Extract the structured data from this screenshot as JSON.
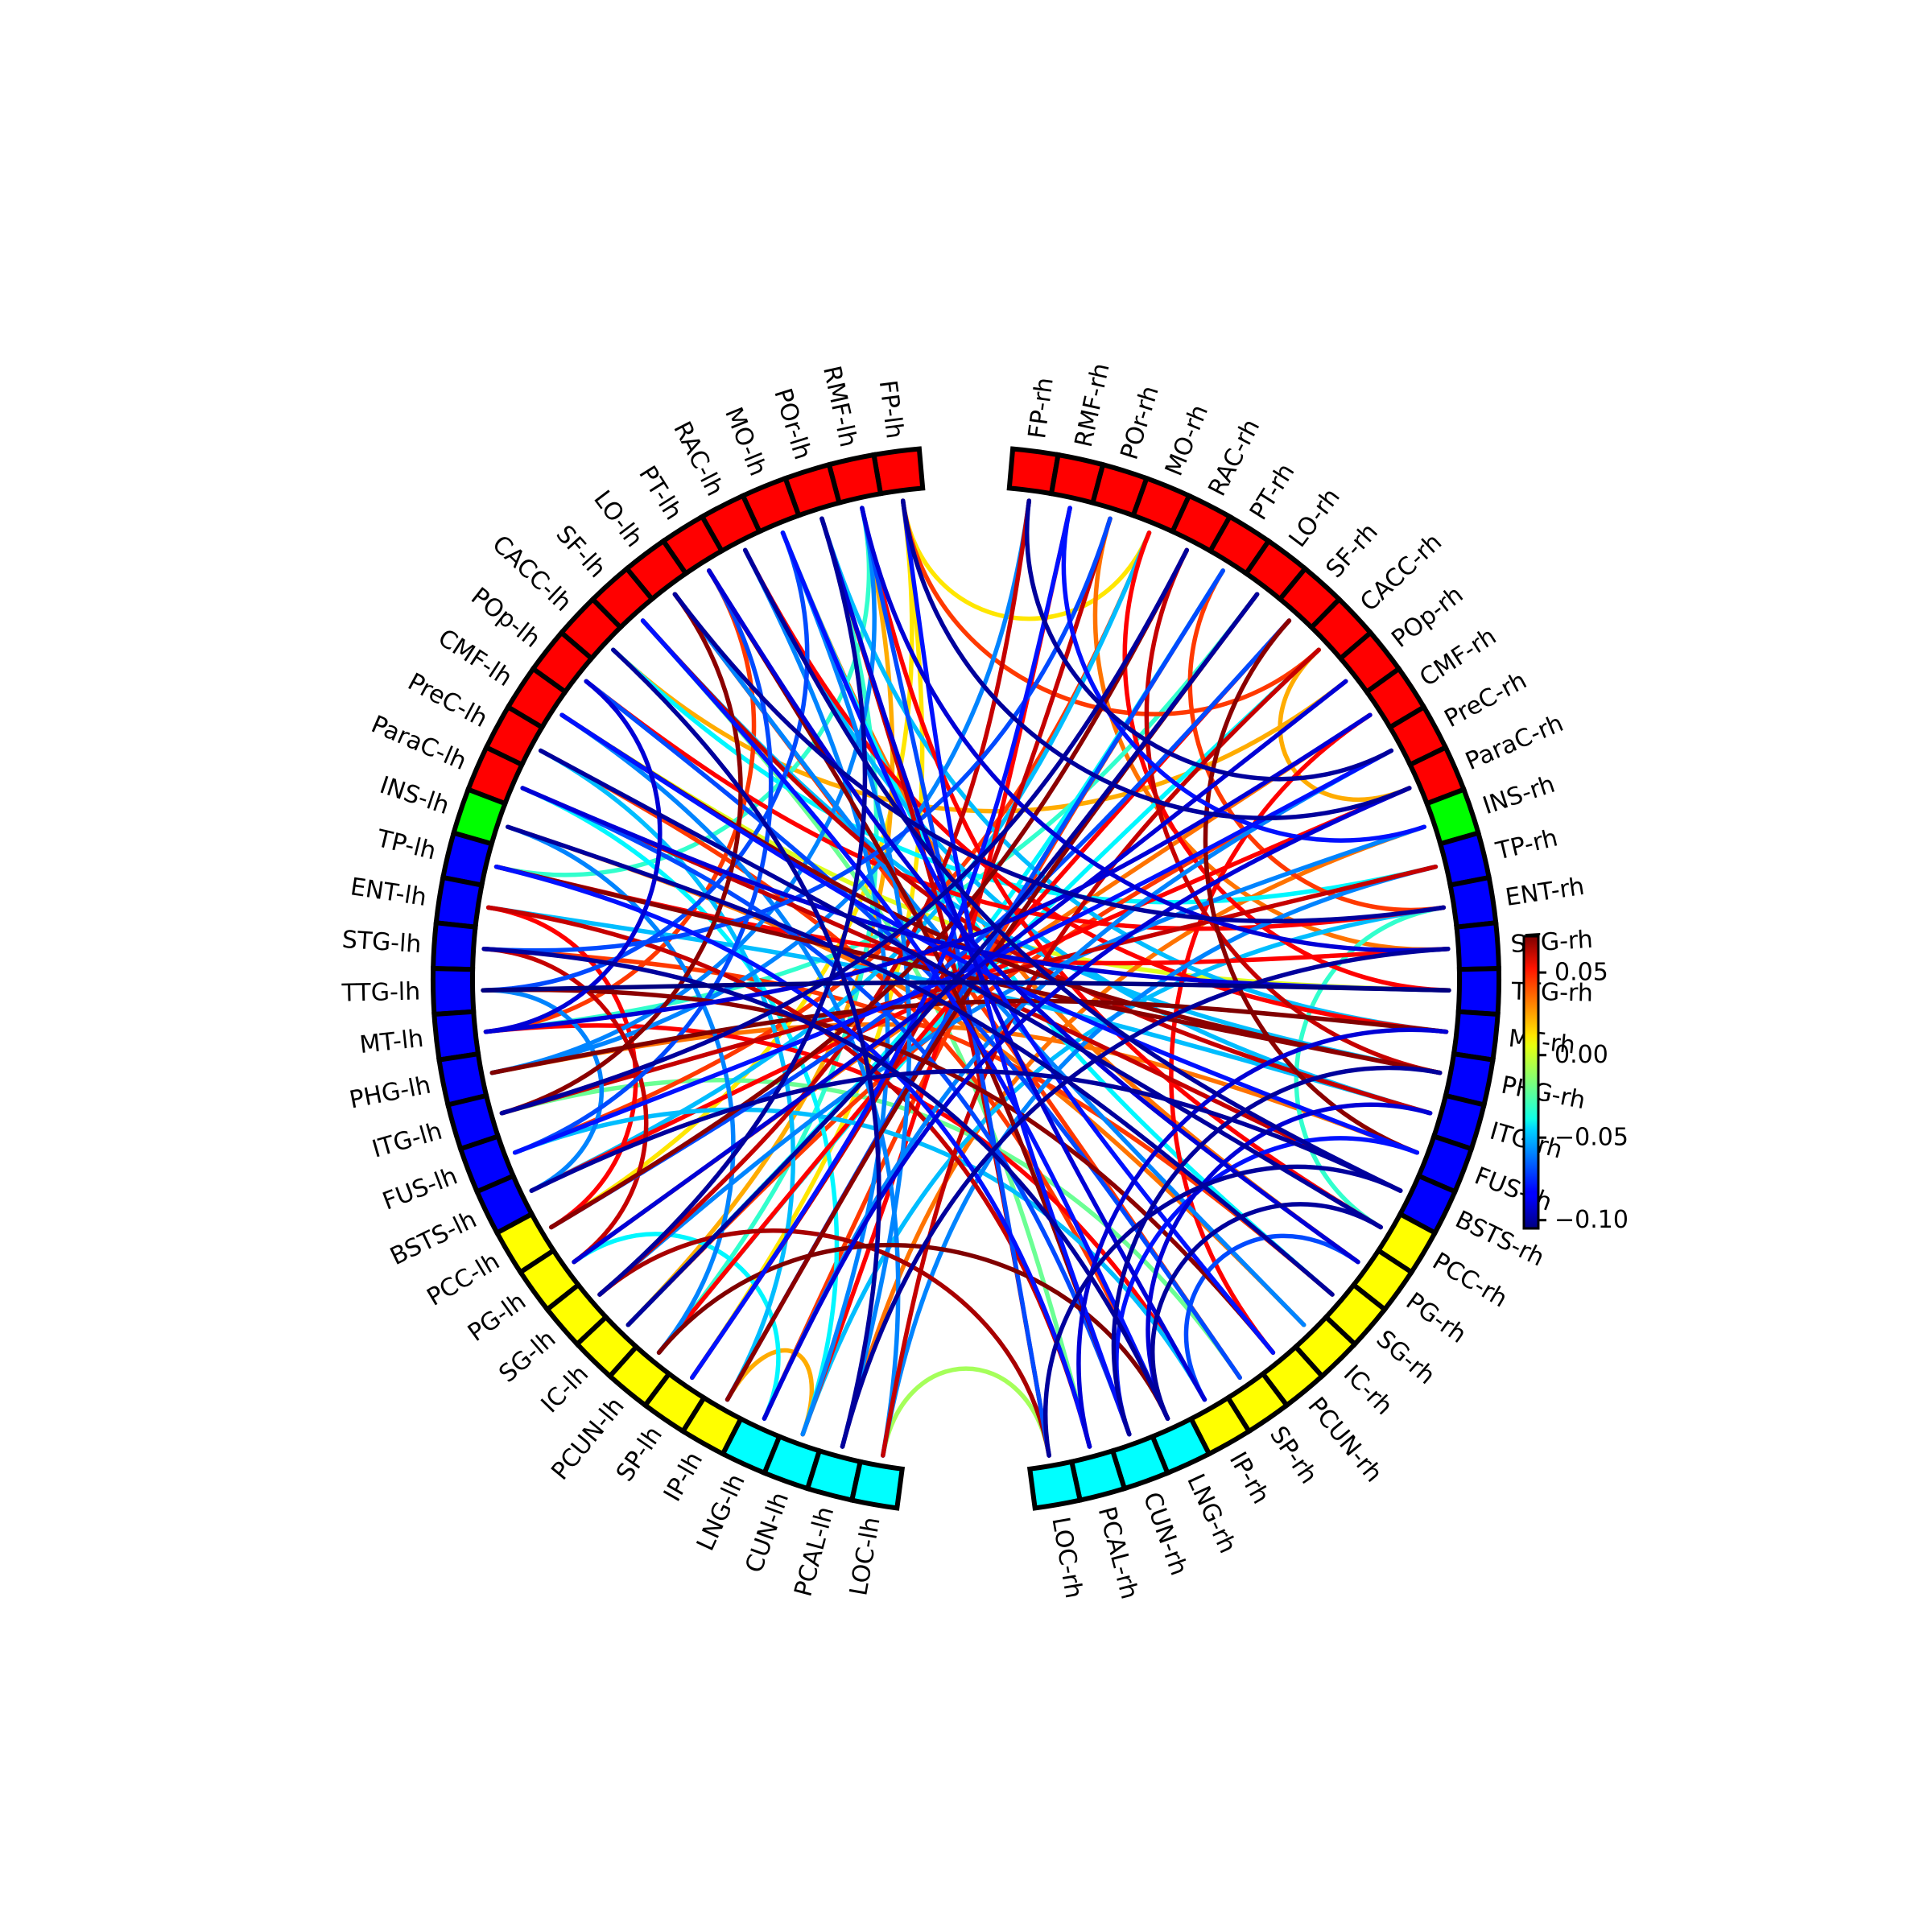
{
  "chart_data": {
    "type": "connectivity-circle",
    "title": "",
    "colormap": "jet",
    "vmin": -0.105,
    "vmax": 0.072,
    "colorbar": {
      "ticks": [
        0.05,
        0.0,
        -0.05,
        -0.1
      ],
      "tick_labels": [
        "0.05",
        "0.00",
        "−0.05",
        "−0.10"
      ]
    },
    "group_colors": {
      "frontal": "#ff0000",
      "insula": "#00ff00",
      "temporal": "#0000ff",
      "parietal": "#ffff00",
      "occipital": "#00ffff"
    },
    "left_nodes": [
      {
        "label": "FP-lh",
        "group": "frontal"
      },
      {
        "label": "RMF-lh",
        "group": "frontal"
      },
      {
        "label": "POr-lh",
        "group": "frontal"
      },
      {
        "label": "MO-lh",
        "group": "frontal"
      },
      {
        "label": "RAC-lh",
        "group": "frontal"
      },
      {
        "label": "PT-lh",
        "group": "frontal"
      },
      {
        "label": "LO-lh",
        "group": "frontal"
      },
      {
        "label": "SF-lh",
        "group": "frontal"
      },
      {
        "label": "CACC-lh",
        "group": "frontal"
      },
      {
        "label": "POp-lh",
        "group": "frontal"
      },
      {
        "label": "CMF-lh",
        "group": "frontal"
      },
      {
        "label": "PreC-lh",
        "group": "frontal"
      },
      {
        "label": "ParaC-lh",
        "group": "frontal"
      },
      {
        "label": "INS-lh",
        "group": "insula"
      },
      {
        "label": "TP-lh",
        "group": "temporal"
      },
      {
        "label": "ENT-lh",
        "group": "temporal"
      },
      {
        "label": "STG-lh",
        "group": "temporal"
      },
      {
        "label": "TTG-lh",
        "group": "temporal"
      },
      {
        "label": "MT-lh",
        "group": "temporal"
      },
      {
        "label": "PHG-lh",
        "group": "temporal"
      },
      {
        "label": "ITG-lh",
        "group": "temporal"
      },
      {
        "label": "FUS-lh",
        "group": "temporal"
      },
      {
        "label": "BSTS-lh",
        "group": "temporal"
      },
      {
        "label": "PCC-lh",
        "group": "parietal"
      },
      {
        "label": "PG-lh",
        "group": "parietal"
      },
      {
        "label": "SG-lh",
        "group": "parietal"
      },
      {
        "label": "IC-lh",
        "group": "parietal"
      },
      {
        "label": "PCUN-lh",
        "group": "parietal"
      },
      {
        "label": "SP-lh",
        "group": "parietal"
      },
      {
        "label": "IP-lh",
        "group": "parietal"
      },
      {
        "label": "LNG-lh",
        "group": "occipital"
      },
      {
        "label": "CUN-lh",
        "group": "occipital"
      },
      {
        "label": "PCAL-lh",
        "group": "occipital"
      },
      {
        "label": "LOC-lh",
        "group": "occipital"
      }
    ],
    "right_nodes": [
      {
        "label": "FP-rh",
        "group": "frontal"
      },
      {
        "label": "RMF-rh",
        "group": "frontal"
      },
      {
        "label": "POr-rh",
        "group": "frontal"
      },
      {
        "label": "MO-rh",
        "group": "frontal"
      },
      {
        "label": "RAC-rh",
        "group": "frontal"
      },
      {
        "label": "PT-rh",
        "group": "frontal"
      },
      {
        "label": "LO-rh",
        "group": "frontal"
      },
      {
        "label": "SF-rh",
        "group": "frontal"
      },
      {
        "label": "CACC-rh",
        "group": "frontal"
      },
      {
        "label": "POp-rh",
        "group": "frontal"
      },
      {
        "label": "CMF-rh",
        "group": "frontal"
      },
      {
        "label": "PreC-rh",
        "group": "frontal"
      },
      {
        "label": "ParaC-rh",
        "group": "frontal"
      },
      {
        "label": "INS-rh",
        "group": "insula"
      },
      {
        "label": "TP-rh",
        "group": "temporal"
      },
      {
        "label": "ENT-rh",
        "group": "temporal"
      },
      {
        "label": "STG-rh",
        "group": "temporal"
      },
      {
        "label": "TTG-rh",
        "group": "temporal"
      },
      {
        "label": "MT-rh",
        "group": "temporal"
      },
      {
        "label": "PHG-rh",
        "group": "temporal"
      },
      {
        "label": "ITG-rh",
        "group": "temporal"
      },
      {
        "label": "FUS-rh",
        "group": "temporal"
      },
      {
        "label": "BSTS-rh",
        "group": "temporal"
      },
      {
        "label": "PCC-rh",
        "group": "parietal"
      },
      {
        "label": "PG-rh",
        "group": "parietal"
      },
      {
        "label": "SG-rh",
        "group": "parietal"
      },
      {
        "label": "IC-rh",
        "group": "parietal"
      },
      {
        "label": "PCUN-rh",
        "group": "parietal"
      },
      {
        "label": "SP-rh",
        "group": "parietal"
      },
      {
        "label": "IP-rh",
        "group": "parietal"
      },
      {
        "label": "LNG-rh",
        "group": "occipital"
      },
      {
        "label": "CUN-rh",
        "group": "occipital"
      },
      {
        "label": "PCAL-rh",
        "group": "occipital"
      },
      {
        "label": "LOC-rh",
        "group": "occipital"
      }
    ],
    "connections": [
      {
        "source": "TTG-lh",
        "target": "TTG-rh",
        "value": -0.105
      },
      {
        "source": "FP-lh",
        "target": "PCC-lh",
        "value": 0.01
      },
      {
        "source": "FP-lh",
        "target": "ParaC-rh",
        "value": -0.1
      },
      {
        "source": "FP-lh",
        "target": "CUN-rh",
        "value": -0.08
      },
      {
        "source": "RMF-lh",
        "target": "LOC-rh",
        "value": -0.07
      },
      {
        "source": "RMF-lh",
        "target": "STG-rh",
        "value": -0.09
      },
      {
        "source": "RMF-lh",
        "target": "PHG-lh",
        "value": -0.06
      },
      {
        "source": "POr-lh",
        "target": "SG-lh",
        "value": -0.1
      },
      {
        "source": "POr-lh",
        "target": "MT-rh",
        "value": -0.05
      },
      {
        "source": "POr-lh",
        "target": "IP-rh",
        "value": -0.09
      },
      {
        "source": "MO-lh",
        "target": "PCUN-rh",
        "value": -0.08
      },
      {
        "source": "MO-lh",
        "target": "TTG-lh",
        "value": -0.07
      },
      {
        "source": "MO-lh",
        "target": "SG-rh",
        "value": -0.04
      },
      {
        "source": "RAC-lh",
        "target": "BSTS-rh",
        "value": -0.1
      },
      {
        "source": "RAC-lh",
        "target": "CUN-lh",
        "value": -0.06
      },
      {
        "source": "RAC-lh",
        "target": "ITG-rh",
        "value": -0.05
      },
      {
        "source": "PT-lh",
        "target": "PG-rh",
        "value": -0.09
      },
      {
        "source": "PT-lh",
        "target": "FUS-lh",
        "value": -0.07
      },
      {
        "source": "LO-lh",
        "target": "IC-rh",
        "value": -0.06
      },
      {
        "source": "LO-lh",
        "target": "ENT-rh",
        "value": -0.1
      },
      {
        "source": "SF-lh",
        "target": "LNG-rh",
        "value": -0.08
      },
      {
        "source": "SF-lh",
        "target": "PHG-rh",
        "value": -0.05
      },
      {
        "source": "CACC-lh",
        "target": "PCAL-lh",
        "value": -0.1
      },
      {
        "source": "CACC-lh",
        "target": "TP-rh",
        "value": -0.04
      },
      {
        "source": "POp-lh",
        "target": "SP-rh",
        "value": -0.07
      },
      {
        "source": "POp-lh",
        "target": "MT-lh",
        "value": -0.09
      },
      {
        "source": "CMF-lh",
        "target": "LOC-lh",
        "value": -0.06
      },
      {
        "source": "CMF-lh",
        "target": "FUS-rh",
        "value": -0.08
      },
      {
        "source": "PreC-lh",
        "target": "PCC-rh",
        "value": -0.1
      },
      {
        "source": "PreC-lh",
        "target": "IP-lh",
        "value": -0.05
      },
      {
        "source": "ParaC-lh",
        "target": "CUN-rh",
        "value": -0.07
      },
      {
        "source": "ParaC-lh",
        "target": "TTG-rh",
        "value": -0.09
      },
      {
        "source": "INS-lh",
        "target": "PCUN-lh",
        "value": -0.06
      },
      {
        "source": "INS-lh",
        "target": "SG-rh",
        "value": -0.1
      },
      {
        "source": "TP-lh",
        "target": "PCAL-rh",
        "value": -0.08
      },
      {
        "source": "ENT-lh",
        "target": "ITG-rh",
        "value": -0.05
      },
      {
        "source": "STG-lh",
        "target": "LNG-rh",
        "value": -0.1
      },
      {
        "source": "STG-lh",
        "target": "POr-rh",
        "value": -0.07
      },
      {
        "source": "MT-lh",
        "target": "CMF-rh",
        "value": -0.09
      },
      {
        "source": "PHG-lh",
        "target": "FP-rh",
        "value": -0.06
      },
      {
        "source": "ITG-lh",
        "target": "RAC-rh",
        "value": -0.1
      },
      {
        "source": "FUS-lh",
        "target": "PreC-rh",
        "value": -0.08
      },
      {
        "source": "BSTS-lh",
        "target": "BSTS-rh",
        "value": -0.1
      },
      {
        "source": "BSTS-lh",
        "target": "MO-rh",
        "value": -0.05
      },
      {
        "source": "PCC-lh",
        "target": "SF-rh",
        "value": -0.07
      },
      {
        "source": "PG-lh",
        "target": "POp-rh",
        "value": -0.09
      },
      {
        "source": "SG-lh",
        "target": "INS-rh",
        "value": -0.06
      },
      {
        "source": "IC-lh",
        "target": "LO-rh",
        "value": -0.1
      },
      {
        "source": "PCUN-lh",
        "target": "CACC-rh",
        "value": -0.04
      },
      {
        "source": "SP-lh",
        "target": "RMF-rh",
        "value": -0.08
      },
      {
        "source": "IP-lh",
        "target": "PT-rh",
        "value": -0.07
      },
      {
        "source": "LNG-lh",
        "target": "ParaC-rh",
        "value": -0.09
      },
      {
        "source": "CUN-lh",
        "target": "ENT-rh",
        "value": -0.05
      },
      {
        "source": "PCAL-lh",
        "target": "STG-rh",
        "value": -0.1
      },
      {
        "source": "LOC-lh",
        "target": "TP-rh",
        "value": -0.06
      },
      {
        "source": "LNG-rh",
        "target": "PCC-rh",
        "value": -0.1
      },
      {
        "source": "LNG-rh",
        "target": "ITG-rh",
        "value": -0.09
      },
      {
        "source": "CUN-rh",
        "target": "PHG-rh",
        "value": -0.1
      },
      {
        "source": "CUN-rh",
        "target": "FUS-rh",
        "value": -0.08
      },
      {
        "source": "PCAL-rh",
        "target": "MT-rh",
        "value": -0.09
      },
      {
        "source": "LOC-rh",
        "target": "BSTS-rh",
        "value": -0.1
      },
      {
        "source": "IP-rh",
        "target": "PG-rh",
        "value": -0.07
      },
      {
        "source": "FP-rh",
        "target": "PreC-rh",
        "value": -0.1
      },
      {
        "source": "RMF-rh",
        "target": "INS-rh",
        "value": -0.08
      },
      {
        "source": "FP-lh",
        "target": "CACC-rh",
        "value": 0.04
      },
      {
        "source": "RMF-lh",
        "target": "PCC-rh",
        "value": 0.05
      },
      {
        "source": "POr-lh",
        "target": "LOC-rh",
        "value": 0.06
      },
      {
        "source": "MO-lh",
        "target": "PG-rh",
        "value": 0.03
      },
      {
        "source": "RAC-lh",
        "target": "MT-rh",
        "value": 0.05
      },
      {
        "source": "PT-lh",
        "target": "CUN-rh",
        "value": 0.07
      },
      {
        "source": "LO-lh",
        "target": "SP-rh",
        "value": 0.04
      },
      {
        "source": "SF-lh",
        "target": "ITG-rh",
        "value": 0.06
      },
      {
        "source": "CACC-lh",
        "target": "POp-rh",
        "value": 0.02
      },
      {
        "source": "POp-lh",
        "target": "ENT-rh",
        "value": 0.05
      },
      {
        "source": "CMF-lh",
        "target": "PHG-rh",
        "value": 0.07
      },
      {
        "source": "PreC-lh",
        "target": "LNG-rh",
        "value": 0.04
      },
      {
        "source": "ParaC-lh",
        "target": "BSTS-rh",
        "value": 0.06
      },
      {
        "source": "INS-lh",
        "target": "IC-rh",
        "value": 0.03
      },
      {
        "source": "TP-lh",
        "target": "STG-rh",
        "value": 0.05
      },
      {
        "source": "ENT-lh",
        "target": "PCAL-rh",
        "value": 0.06
      },
      {
        "source": "STG-lh",
        "target": "SG-rh",
        "value": 0.04
      },
      {
        "source": "TTG-lh",
        "target": "PCUN-rh",
        "value": 0.07
      },
      {
        "source": "MT-lh",
        "target": "IP-rh",
        "value": 0.05
      },
      {
        "source": "PHG-lh",
        "target": "FUS-rh",
        "value": 0.03
      },
      {
        "source": "ITG-lh",
        "target": "TP-rh",
        "value": 0.06
      },
      {
        "source": "FUS-lh",
        "target": "MO-rh",
        "value": 0.04
      },
      {
        "source": "BSTS-lh",
        "target": "ParaC-rh",
        "value": 0.05
      },
      {
        "source": "PCC-lh",
        "target": "RAC-rh",
        "value": 0.07
      },
      {
        "source": "PG-lh",
        "target": "CMF-rh",
        "value": 0.03
      },
      {
        "source": "SG-lh",
        "target": "FP-rh",
        "value": 0.06
      },
      {
        "source": "IC-lh",
        "target": "PreC-rh",
        "value": 0.04
      },
      {
        "source": "PCUN-lh",
        "target": "SF-rh",
        "value": 0.05
      },
      {
        "source": "SP-lh",
        "target": "POr-rh",
        "value": 0.06
      },
      {
        "source": "IP-lh",
        "target": "LO-rh",
        "value": 0.07
      },
      {
        "source": "LNG-lh",
        "target": "PT-rh",
        "value": 0.04
      },
      {
        "source": "CUN-lh",
        "target": "RMF-rh",
        "value": 0.05
      },
      {
        "source": "PCAL-lh",
        "target": "INS-rh",
        "value": 0.03
      },
      {
        "source": "LOC-lh",
        "target": "CACC-rh",
        "value": 0.06
      },
      {
        "source": "ENT-lh",
        "target": "PCC-lh",
        "value": 0.05
      },
      {
        "source": "STG-lh",
        "target": "PG-lh",
        "value": 0.06
      },
      {
        "source": "PT-lh",
        "target": "MT-lh",
        "value": 0.04
      },
      {
        "source": "LO-lh",
        "target": "ITG-lh",
        "value": 0.07
      },
      {
        "source": "MO-rh",
        "target": "TTG-rh",
        "value": 0.05
      },
      {
        "source": "RAC-rh",
        "target": "PHG-rh",
        "value": 0.06
      },
      {
        "source": "PT-rh",
        "target": "ENT-rh",
        "value": 0.04
      },
      {
        "source": "SF-rh",
        "target": "FUS-rh",
        "value": 0.07
      },
      {
        "source": "POr-rh",
        "target": "STG-rh",
        "value": 0.03
      },
      {
        "source": "CMF-rh",
        "target": "PCUN-rh",
        "value": 0.05
      },
      {
        "source": "PCUN-lh",
        "target": "LNG-rh",
        "value": 0.072
      },
      {
        "source": "PHG-lh",
        "target": "MT-rh",
        "value": 0.072
      },
      {
        "source": "TP-lh",
        "target": "PHG-rh",
        "value": 0.07
      },
      {
        "source": "SG-lh",
        "target": "LOC-rh",
        "value": 0.065
      },
      {
        "source": "FP-lh",
        "target": "SP-lh",
        "value": 0.01
      },
      {
        "source": "RMF-lh",
        "target": "IC-lh",
        "value": 0.02
      },
      {
        "source": "CMF-lh",
        "target": "TTG-rh",
        "value": 0.0
      },
      {
        "source": "SF-lh",
        "target": "PCAL-rh",
        "value": -0.02
      },
      {
        "source": "POr-lh",
        "target": "PCUN-lh",
        "value": -0.03
      },
      {
        "source": "ITG-lh",
        "target": "SP-rh",
        "value": -0.02
      },
      {
        "source": "LOC-lh",
        "target": "LOC-rh",
        "value": -0.01
      },
      {
        "source": "CUN-lh",
        "target": "IP-lh",
        "value": 0.02
      },
      {
        "source": "FP-lh",
        "target": "MO-rh",
        "value": 0.01
      },
      {
        "source": "RMF-lh",
        "target": "TP-lh",
        "value": -0.03
      },
      {
        "source": "PG-lh",
        "target": "LNG-lh",
        "value": -0.04
      },
      {
        "source": "ENT-rh",
        "target": "PCC-rh",
        "value": -0.03
      },
      {
        "source": "TTG-lh",
        "target": "BSTS-lh",
        "value": -0.06
      },
      {
        "source": "CACC-rh",
        "target": "ParaC-rh",
        "value": 0.02
      },
      {
        "source": "ParaC-lh",
        "target": "CUN-lh",
        "value": -0.04
      },
      {
        "source": "MT-lh",
        "target": "LO-rh",
        "value": -0.03
      },
      {
        "source": "FUS-lh",
        "target": "IP-rh",
        "value": -0.05
      },
      {
        "source": "LNG-lh",
        "target": "PreC-rh",
        "value": -0.06
      },
      {
        "source": "PCAL-lh",
        "target": "MO-lh",
        "value": -0.06
      },
      {
        "source": "IC-lh",
        "target": "PT-rh",
        "value": -0.04
      }
    ]
  }
}
